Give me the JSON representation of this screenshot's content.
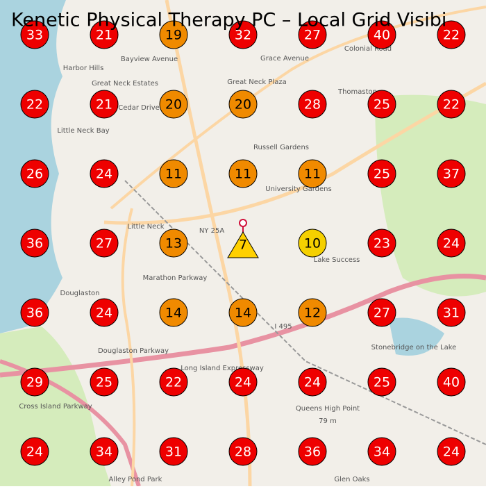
{
  "title": "Kenetic Physical Therapy PC – Local Grid Visibi",
  "grid": {
    "rows": [
      [
        33,
        21,
        19,
        32,
        27,
        40,
        22
      ],
      [
        22,
        21,
        20,
        20,
        28,
        25,
        22
      ],
      [
        26,
        24,
        11,
        11,
        11,
        25,
        37
      ],
      [
        36,
        27,
        13,
        7,
        10,
        23,
        24
      ],
      [
        36,
        24,
        14,
        14,
        12,
        27,
        31
      ],
      [
        29,
        25,
        22,
        24,
        24,
        25,
        40
      ],
      [
        24,
        34,
        31,
        28,
        36,
        34,
        24
      ]
    ],
    "colors": [
      [
        "#e00",
        "#e00",
        "#f08a00",
        "#e00",
        "#e00",
        "#e00",
        "#e00"
      ],
      [
        "#e00",
        "#e00",
        "#f08a00",
        "#f08a00",
        "#e00",
        "#e00",
        "#e00"
      ],
      [
        "#e00",
        "#e00",
        "#f08a00",
        "#f08a00",
        "#f08a00",
        "#e00",
        "#e00"
      ],
      [
        "#e00",
        "#e00",
        "#f08a00",
        "#ffd000",
        "#f5d000",
        "#e00",
        "#e00"
      ],
      [
        "#e00",
        "#e00",
        "#f08a00",
        "#f08a00",
        "#f08a00",
        "#e00",
        "#e00"
      ],
      [
        "#e00",
        "#e00",
        "#e00",
        "#e00",
        "#e00",
        "#e00",
        "#e00"
      ],
      [
        "#e00",
        "#e00",
        "#e00",
        "#e00",
        "#e00",
        "#e00",
        "#e00"
      ]
    ]
  },
  "map_labels": [
    "Harbor Hills",
    "Great Neck Estates",
    "Great Neck Plaza",
    "Grace Avenue",
    "Colonial Road",
    "Cedar Drive",
    "Russell Gardens",
    "University Gardens",
    "Little Neck",
    "Little Neck Bay",
    "NY 25A",
    "Lake Success",
    "Douglaston",
    "I 495",
    "Cross Island Parkway",
    "Douglaston Parkway",
    "Marathon Parkway",
    "Queens High Point",
    "79 m",
    "Glen Oaks",
    "Alley Pond Park",
    "Stonebridge on the Lake",
    "Long Island Expressway",
    "Thomaston",
    "Bayview Avenue"
  ]
}
